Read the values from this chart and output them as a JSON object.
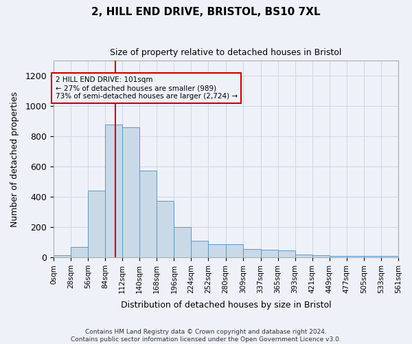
{
  "title1": "2, HILL END DRIVE, BRISTOL, BS10 7XL",
  "title2": "Size of property relative to detached houses in Bristol",
  "xlabel": "Distribution of detached houses by size in Bristol",
  "ylabel": "Number of detached properties",
  "property_size": 101,
  "annotation_line1": "2 HILL END DRIVE: 101sqm",
  "annotation_line2": "← 27% of detached houses are smaller (989)",
  "annotation_line3": "73% of semi-detached houses are larger (2,724) →",
  "bar_values": [
    13,
    68,
    440,
    880,
    860,
    575,
    375,
    200,
    110,
    85,
    85,
    55,
    50,
    45,
    20,
    15,
    10,
    10,
    10,
    10
  ],
  "bin_edges": [
    0,
    28,
    56,
    84,
    112,
    140,
    168,
    196,
    224,
    252,
    280,
    309,
    337,
    365,
    393,
    421,
    449,
    477,
    505,
    533,
    561
  ],
  "bin_labels": [
    "0sqm",
    "28sqm",
    "56sqm",
    "84sqm",
    "112sqm",
    "140sqm",
    "168sqm",
    "196sqm",
    "224sqm",
    "252sqm",
    "280sqm",
    "309sqm",
    "337sqm",
    "365sqm",
    "393sqm",
    "421sqm",
    "449sqm",
    "477sqm",
    "505sqm",
    "533sqm",
    "561sqm"
  ],
  "bar_color": "#c9d9e8",
  "bar_edge_color": "#5a9ac8",
  "red_line_color": "#cc0000",
  "annotation_box_color": "#cc0000",
  "ylim": [
    0,
    1300
  ],
  "yticks": [
    0,
    200,
    400,
    600,
    800,
    1000,
    1200
  ],
  "grid_color": "#d0d8e8",
  "bg_color": "#eef2f8",
  "footer": "Contains HM Land Registry data © Crown copyright and database right 2024.\nContains public sector information licensed under the Open Government Licence v3.0."
}
